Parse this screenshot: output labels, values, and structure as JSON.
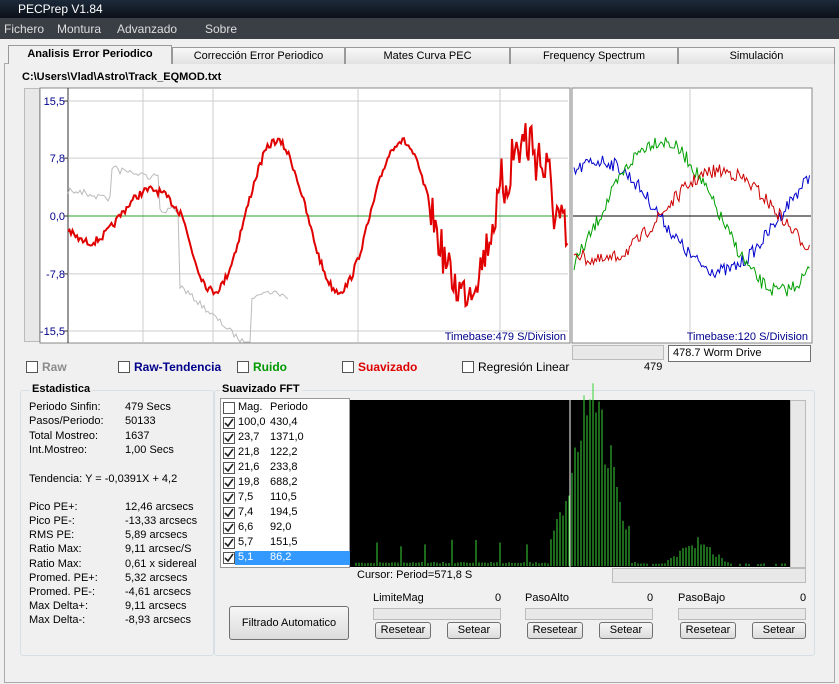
{
  "window": {
    "title": "PECPrep V1.84",
    "menu": [
      "Fichero",
      "Montura",
      "Advanzado",
      "Sobre"
    ]
  },
  "tabs": [
    "Analisis Error Periodico",
    "Corrección Error Periodico",
    "Mates Curva PEC",
    "Frequency Spectrum",
    "Simulación"
  ],
  "file_path": "C:\\Users\\Vlad\\Astro\\Track_EQMOD.txt",
  "main_plot": {
    "yticks": [
      {
        "value": 15.5,
        "label": "15,5"
      },
      {
        "value": 7.8,
        "label": "7,8"
      },
      {
        "value": 0,
        "label": "0,0"
      },
      {
        "value": -7.8,
        "label": "-7,8"
      },
      {
        "value": -15.5,
        "label": "-15,5"
      }
    ],
    "timebase": "Timebase:479 S/Division"
  },
  "side_plot": {
    "timebase": "Timebase:120 S/Division",
    "combo": "478.7 Worm Drive",
    "slider_value": "479"
  },
  "checkboxes": [
    {
      "label": "Raw",
      "color": "#8c8c8c"
    },
    {
      "label": "Raw-Tendencia",
      "color": "#00008b"
    },
    {
      "label": "Ruido",
      "color": "#009900"
    },
    {
      "label": "Suavizado",
      "color": "#dd0000"
    },
    {
      "label": "Regresión Linear",
      "color": "#000000"
    }
  ],
  "estadistica": {
    "title": "Estadistica",
    "rows": [
      [
        "Periodo Sinfin:",
        "479 Secs"
      ],
      [
        "Pasos/Periodo:",
        "50133"
      ],
      [
        "Total Mostreo:",
        "1637"
      ],
      [
        "Int.Mostreo:",
        "1,00 Secs"
      ]
    ],
    "tendencia": "Tendencia: Y = -0,0391X + 4,2",
    "rows2": [
      [
        "Pico PE+:",
        "12,46 arcsecs"
      ],
      [
        "Pico PE-:",
        "-13,33 arcsecs"
      ],
      [
        "RMS PE:",
        "5,89 arcsecs"
      ],
      [
        "Ratio Max:",
        "9,11 arcsec/S"
      ],
      [
        "Ratio Max:",
        "0,61 x sidereal"
      ],
      [
        "Promed. PE+:",
        "5,32 arcsecs"
      ],
      [
        "Promed. PE-:",
        "-4,61 arcsecs"
      ],
      [
        "Max Delta+:",
        "9,11 arcsecs"
      ],
      [
        "Max Delta-:",
        "-8,93 arcsecs"
      ]
    ]
  },
  "fft": {
    "title": "Suavizado FFT",
    "headers": [
      "Mag.",
      "Periodo"
    ],
    "rows": [
      [
        "100,0",
        "430,4"
      ],
      [
        "23,7",
        "1371,0"
      ],
      [
        "21,8",
        "122,2"
      ],
      [
        "21,6",
        "233,8"
      ],
      [
        "19,8",
        "688,2"
      ],
      [
        "7,5",
        "110,5"
      ],
      [
        "7,4",
        "194,5"
      ],
      [
        "6,6",
        "92,0"
      ],
      [
        "5,7",
        "151,5"
      ],
      [
        "5,1",
        "86,2"
      ]
    ],
    "cursor": "Cursor: Period=571,8 S"
  },
  "filter_button": "Filtrado Automatico",
  "sliders": [
    {
      "label": "LimiteMag",
      "value": "0"
    },
    {
      "label": "PasoAlto",
      "value": "0"
    },
    {
      "label": "PasoBajo",
      "value": "0"
    }
  ],
  "buttons": {
    "reset": "Resetear",
    "set": "Setear"
  }
}
